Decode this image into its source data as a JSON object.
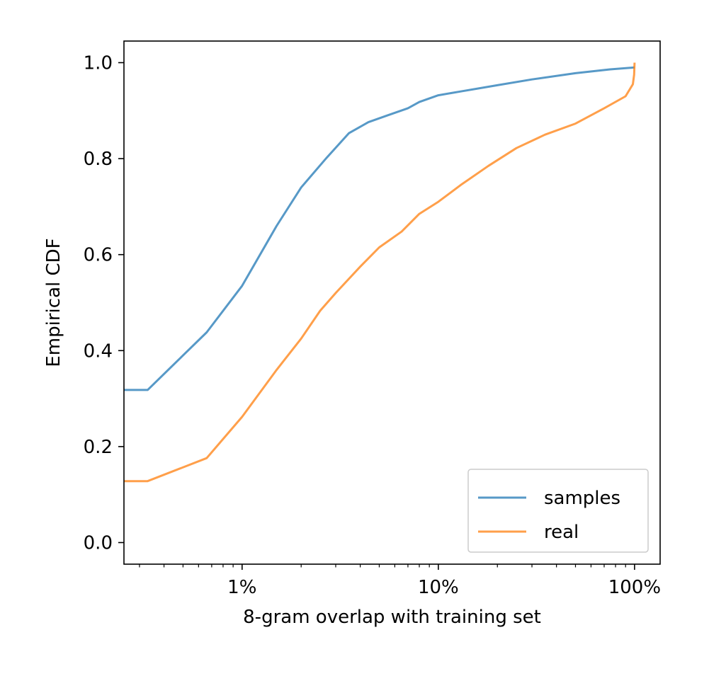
{
  "chart_data": {
    "type": "line",
    "title": "",
    "xlabel": "8-gram overlap with training set",
    "ylabel": "Empirical CDF",
    "x_scale": "log",
    "x_unit": "percent",
    "xlim": [
      0.25,
      135
    ],
    "ylim": [
      -0.045,
      1.045
    ],
    "x_ticks": [
      {
        "value": 1,
        "label": "1%"
      },
      {
        "value": 10,
        "label": "10%"
      },
      {
        "value": 100,
        "label": "100%"
      }
    ],
    "y_ticks": [
      {
        "value": 0.0,
        "label": "0.0"
      },
      {
        "value": 0.2,
        "label": "0.2"
      },
      {
        "value": 0.4,
        "label": "0.4"
      },
      {
        "value": 0.6,
        "label": "0.6"
      },
      {
        "value": 0.8,
        "label": "0.8"
      },
      {
        "value": 1.0,
        "label": "1.0"
      }
    ],
    "grid": false,
    "legend_position": "lower-right",
    "series": [
      {
        "name": "samples",
        "color": "#1f77b4",
        "points": [
          [
            0.25,
            0.318
          ],
          [
            0.33,
            0.318
          ],
          [
            0.5,
            0.39
          ],
          [
            0.66,
            0.438
          ],
          [
            1.0,
            0.535
          ],
          [
            1.5,
            0.66
          ],
          [
            2.0,
            0.74
          ],
          [
            2.7,
            0.802
          ],
          [
            3.5,
            0.853
          ],
          [
            4.4,
            0.876
          ],
          [
            5.5,
            0.89
          ],
          [
            7.0,
            0.905
          ],
          [
            8.0,
            0.918
          ],
          [
            10.0,
            0.932
          ],
          [
            13.0,
            0.94
          ],
          [
            20.0,
            0.953
          ],
          [
            30.0,
            0.965
          ],
          [
            50.0,
            0.978
          ],
          [
            75.0,
            0.986
          ],
          [
            100.0,
            0.99
          ]
        ]
      },
      {
        "name": "real",
        "color": "#ff7f0e",
        "points": [
          [
            0.25,
            0.128
          ],
          [
            0.33,
            0.128
          ],
          [
            0.66,
            0.176
          ],
          [
            1.0,
            0.262
          ],
          [
            1.5,
            0.36
          ],
          [
            2.0,
            0.425
          ],
          [
            2.5,
            0.483
          ],
          [
            3.0,
            0.52
          ],
          [
            4.0,
            0.575
          ],
          [
            5.0,
            0.615
          ],
          [
            6.5,
            0.648
          ],
          [
            8.0,
            0.685
          ],
          [
            10.0,
            0.71
          ],
          [
            13.0,
            0.745
          ],
          [
            18.0,
            0.785
          ],
          [
            25.0,
            0.822
          ],
          [
            35.0,
            0.85
          ],
          [
            50.0,
            0.873
          ],
          [
            70.0,
            0.905
          ],
          [
            90.0,
            0.93
          ],
          [
            98.0,
            0.955
          ],
          [
            99.5,
            0.975
          ],
          [
            100.0,
            1.0
          ]
        ]
      }
    ]
  }
}
